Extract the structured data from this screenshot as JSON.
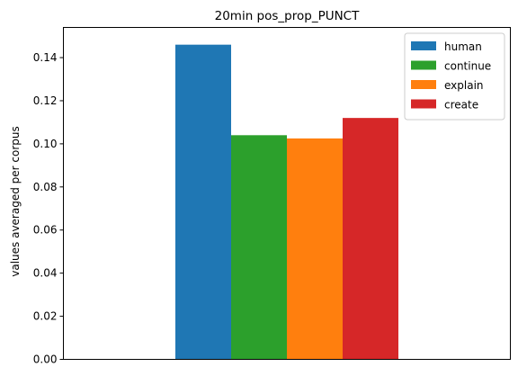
{
  "chart_data": {
    "type": "bar",
    "title": "20min pos_prop_PUNCT",
    "xlabel": "",
    "ylabel": "values averaged per corpus",
    "ylim": [
      0,
      0.154
    ],
    "yticks": [
      0.0,
      0.02,
      0.04,
      0.06,
      0.08,
      0.1,
      0.12,
      0.14
    ],
    "ytick_labels": [
      "0.00",
      "0.02",
      "0.04",
      "0.06",
      "0.08",
      "0.10",
      "0.12",
      "0.14"
    ],
    "categories": [
      ""
    ],
    "series": [
      {
        "name": "human",
        "values": [
          0.146
        ],
        "color": "#1f77b4"
      },
      {
        "name": "continue",
        "values": [
          0.104
        ],
        "color": "#2ca02c"
      },
      {
        "name": "explain",
        "values": [
          0.1025
        ],
        "color": "#ff7f0e"
      },
      {
        "name": "create",
        "values": [
          0.112
        ],
        "color": "#d62728"
      }
    ],
    "legend_position": "top-right",
    "grid": false
  }
}
